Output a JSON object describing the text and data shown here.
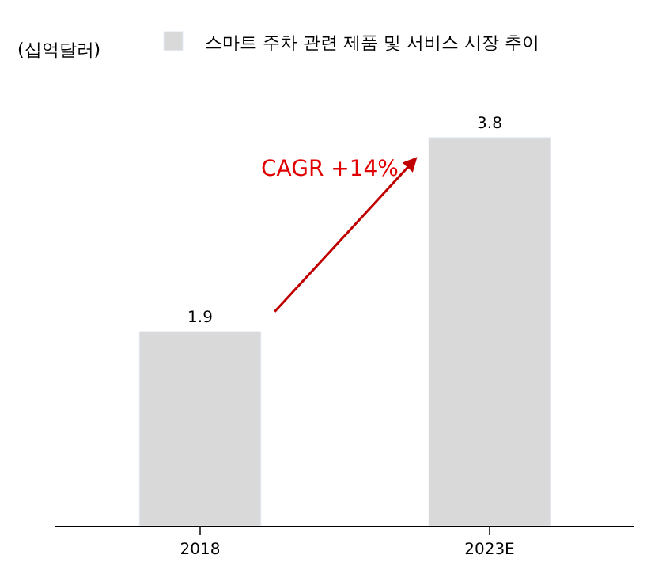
{
  "chart_data": {
    "type": "bar",
    "ylabel": "(십억달러)",
    "categories": [
      "2018",
      "2023E"
    ],
    "series": [
      {
        "name": "스마트 주차 관련 제품 및 서비스 시장 추이",
        "color": "#d9d9d9",
        "values": [
          1.9,
          3.8
        ]
      }
    ],
    "data_labels": true,
    "legend": "top",
    "annotations": [
      "CAGR +14%"
    ]
  }
}
